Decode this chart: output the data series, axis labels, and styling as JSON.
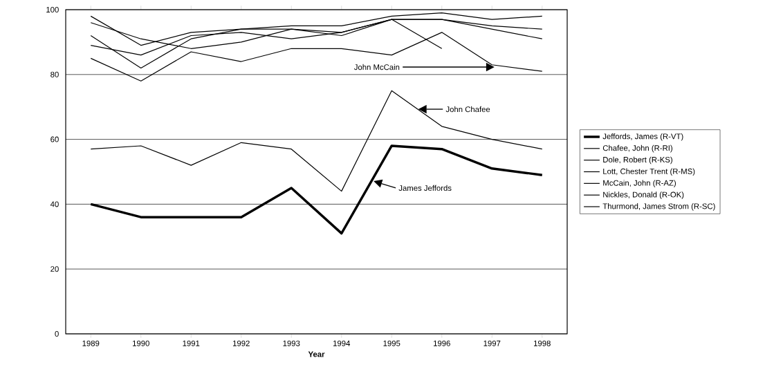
{
  "chart_data": {
    "type": "line",
    "xlabel": "Year",
    "categories": [
      "1989",
      "1990",
      "1991",
      "1992",
      "1993",
      "1994",
      "1995",
      "1996",
      "1997",
      "1998"
    ],
    "series": [
      {
        "name": "Jeffords, James (R-VT)",
        "color": "#000000",
        "values": [
          40,
          36,
          36,
          36,
          45,
          31,
          58,
          57,
          51,
          49
        ]
      },
      {
        "name": "Chafee, John (R-RI)",
        "color": "#000000",
        "values": [
          57,
          58,
          52,
          59,
          57,
          44,
          75,
          64,
          60,
          57
        ]
      },
      {
        "name": "Dole, Robert (R-KS)",
        "color": "#000000",
        "values": [
          89,
          86,
          92,
          93,
          91,
          93,
          97,
          88,
          null,
          null
        ]
      },
      {
        "name": "Lott, Chester Trent (R-MS)",
        "color": "#000000",
        "values": [
          92,
          82,
          91,
          94,
          94,
          93,
          97,
          97,
          94,
          91
        ]
      },
      {
        "name": "McCain, John (R-AZ)",
        "color": "#000000",
        "values": [
          85,
          78,
          87,
          84,
          88,
          88,
          86,
          93,
          83,
          81
        ]
      },
      {
        "name": "Nickles, Donald (R-OK)",
        "color": "#000000",
        "values": [
          96,
          91,
          88,
          90,
          94,
          92,
          97,
          97,
          95,
          94
        ]
      },
      {
        "name": "Thurmond, James Strom (R-SC)",
        "color": "#000000",
        "values": [
          98,
          89,
          93,
          94,
          95,
          95,
          98,
          99,
          97,
          98
        ]
      }
    ],
    "ylim": [
      0,
      100
    ],
    "yticks": [
      0,
      20,
      40,
      60,
      80,
      100
    ],
    "grid": "y",
    "legend": "right",
    "marker": "none",
    "line_style": "solid",
    "annotations": [
      "John McCain",
      "John Chafee",
      "James Jeffords"
    ]
  }
}
